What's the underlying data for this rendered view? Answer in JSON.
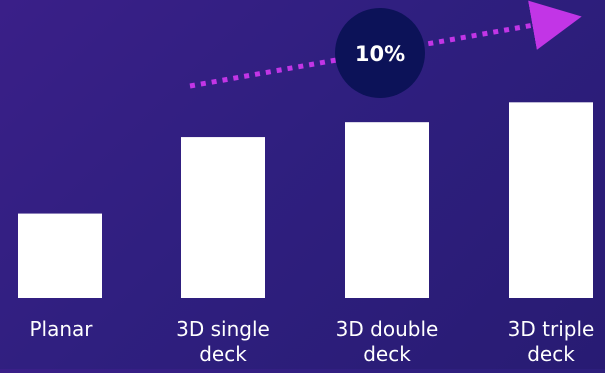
{
  "chart_data": {
    "type": "bar",
    "categories": [
      [
        "Planar"
      ],
      [
        "3D single",
        "deck"
      ],
      [
        "3D double",
        "deck"
      ],
      [
        "3D triple",
        "deck"
      ]
    ],
    "values": [
      85,
      162,
      177,
      197
    ],
    "ylim": [
      0,
      300
    ],
    "title": "",
    "xlabel": "",
    "ylabel": "",
    "grid": false,
    "annotations": [
      {
        "type": "trend-arrow",
        "text": "10%",
        "direction": "up-right"
      }
    ]
  },
  "colors": {
    "bar": "#ffffff",
    "text": "#ffffff",
    "arrow": "#c235e6",
    "badge": "#0c1258"
  }
}
